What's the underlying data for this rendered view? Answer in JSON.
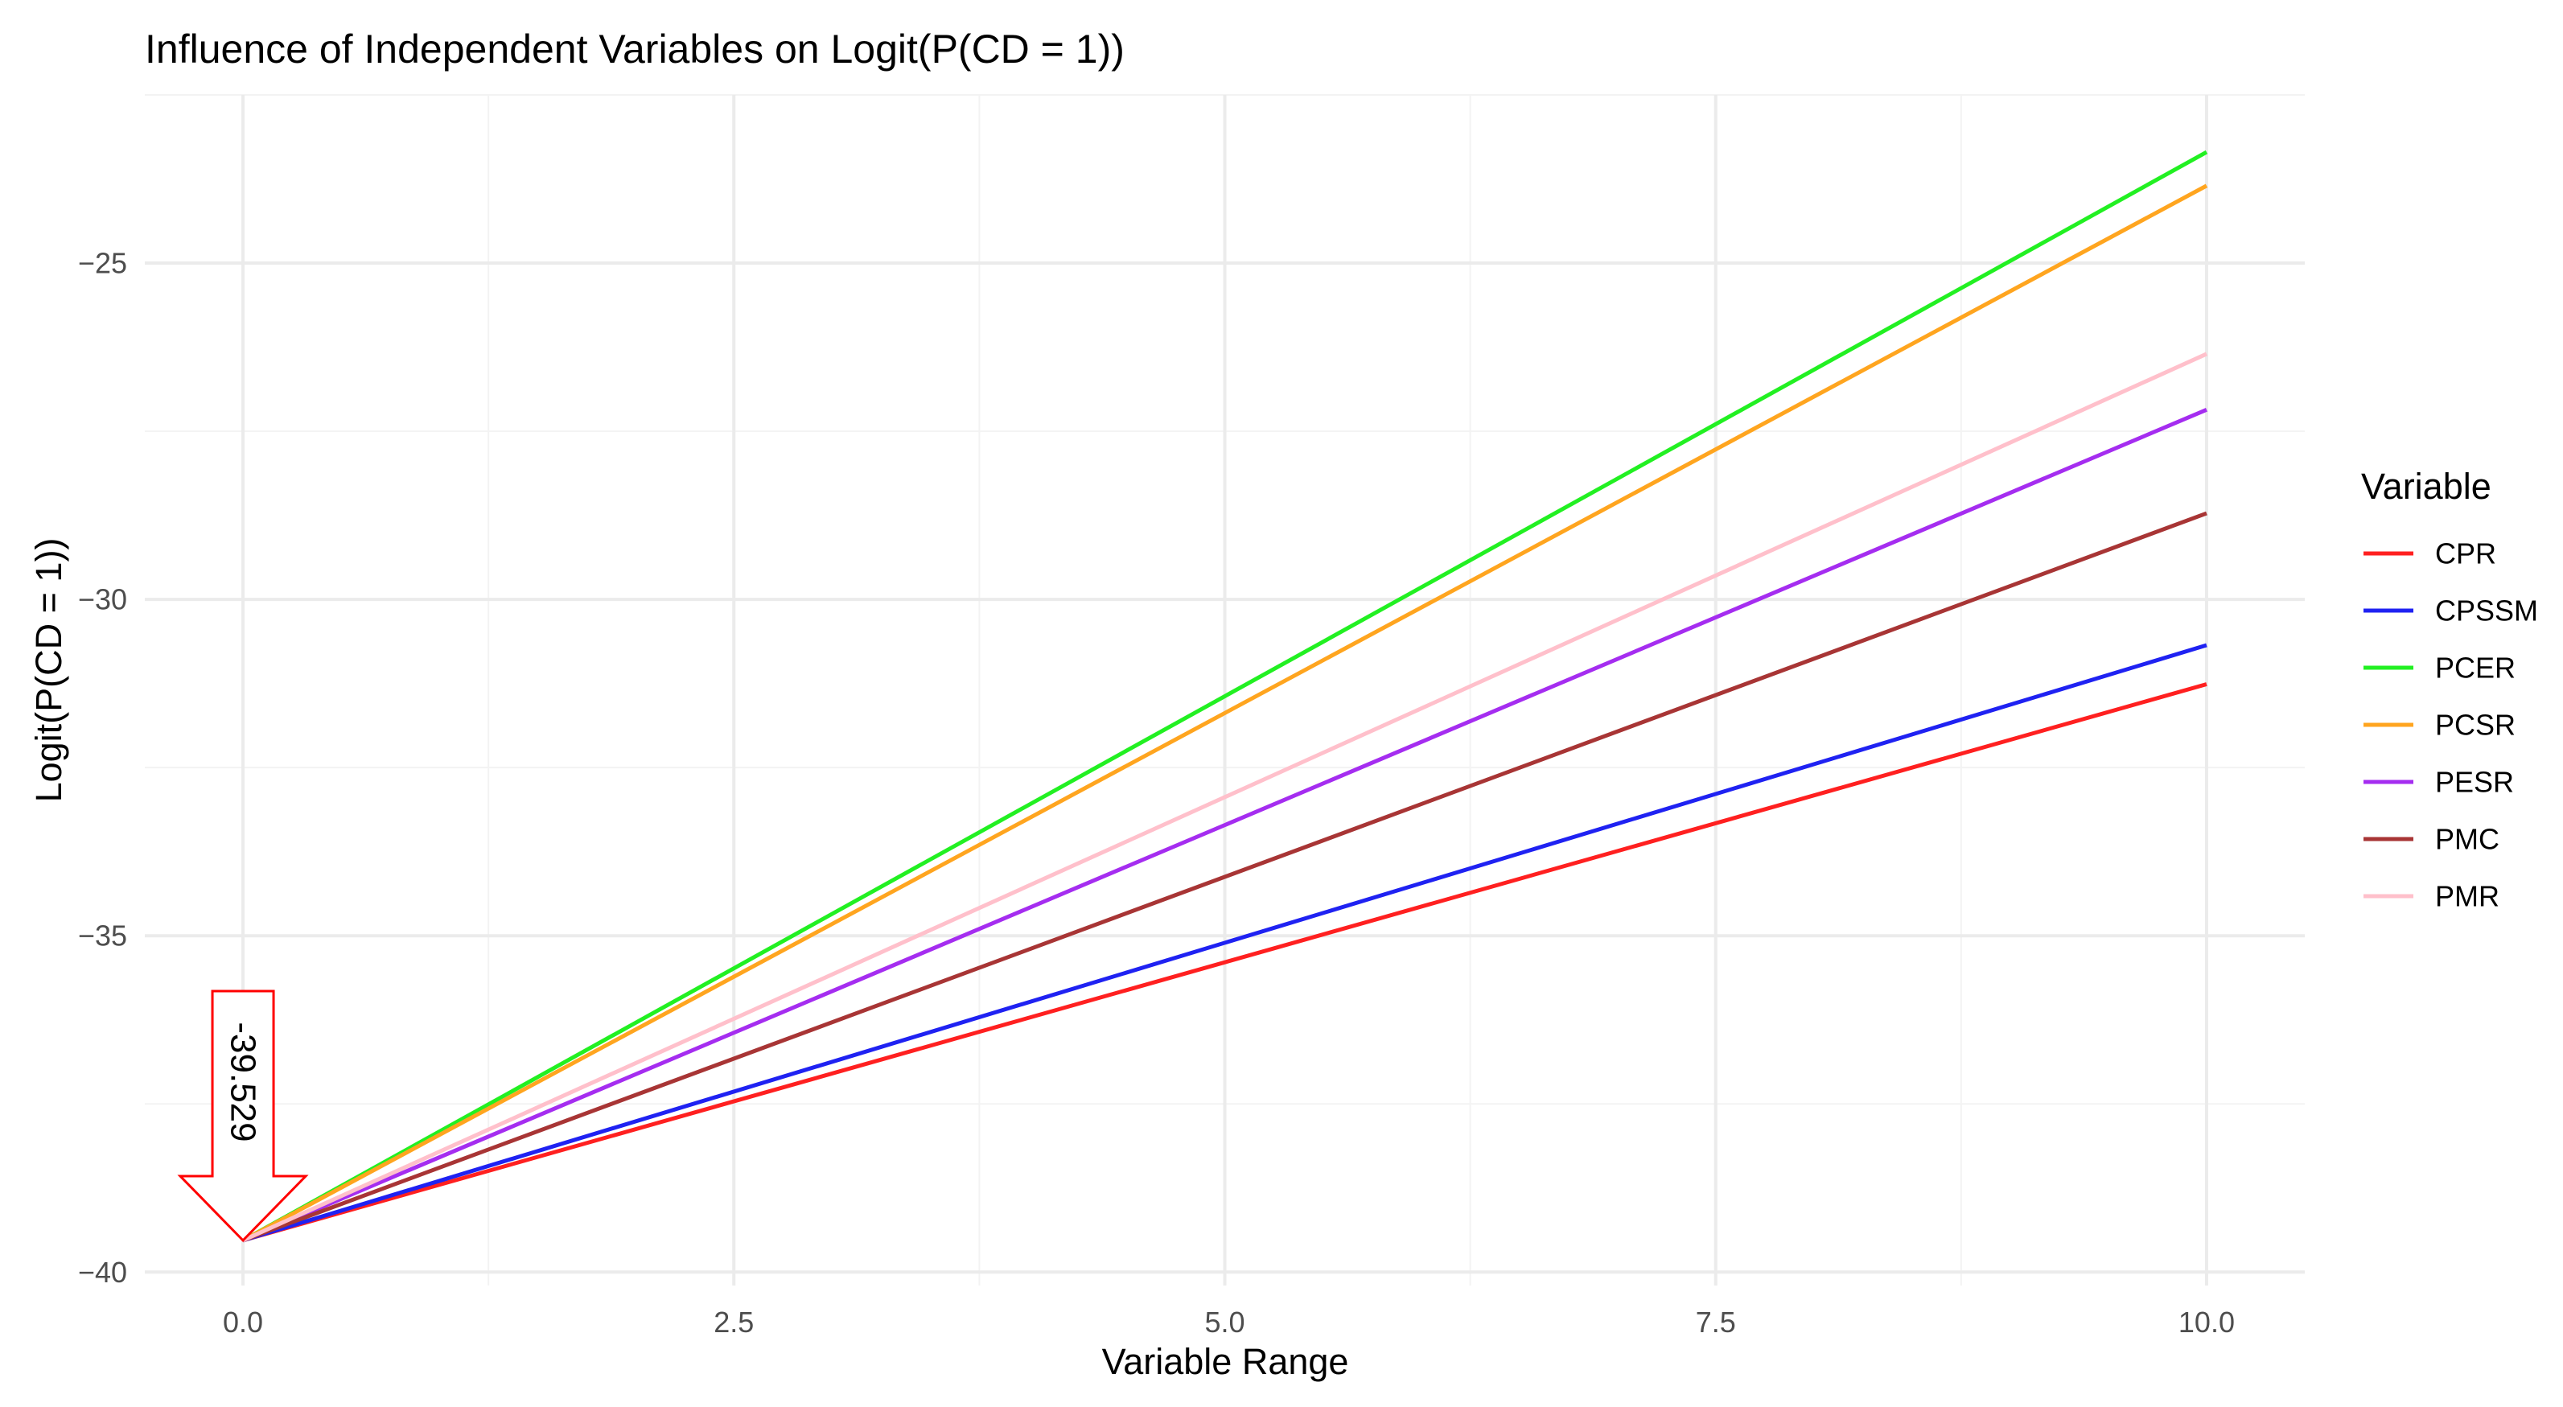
{
  "chart_data": {
    "type": "line",
    "title": "Influence of Independent Variables on Logit(P(CD = 1))",
    "xlabel": "Variable Range",
    "ylabel": "Logit(P(CD = 1))",
    "xlim": [
      -0.5,
      10.5
    ],
    "ylim": [
      -40.2,
      -22.5
    ],
    "x_ticks": [
      0.0,
      2.5,
      5.0,
      7.5,
      10.0
    ],
    "x_tick_labels": [
      "0.0",
      "2.5",
      "5.0",
      "7.5",
      "10.0"
    ],
    "y_ticks": [
      -40,
      -35,
      -30,
      -25
    ],
    "y_tick_labels": [
      "−40",
      "−35",
      "−30",
      "−25"
    ],
    "grid": true,
    "legend": {
      "title": "Variable",
      "position": "right"
    },
    "x": [
      0,
      10
    ],
    "series": [
      {
        "name": "CPR",
        "color": "#FF2020",
        "values": [
          -39.529,
          -31.26
        ]
      },
      {
        "name": "CPSSM",
        "color": "#1F22F2",
        "values": [
          -39.529,
          -30.68
        ]
      },
      {
        "name": "PCER",
        "color": "#22F022",
        "values": [
          -39.529,
          -23.35
        ]
      },
      {
        "name": "PCSR",
        "color": "#FFA51F",
        "values": [
          -39.529,
          -23.85
        ]
      },
      {
        "name": "PESR",
        "color": "#A52DF0",
        "values": [
          -39.529,
          -27.18
        ]
      },
      {
        "name": "PMC",
        "color": "#A83535",
        "values": [
          -39.529,
          -28.72
        ]
      },
      {
        "name": "PMR",
        "color": "#FFC0CB",
        "values": [
          -39.529,
          -26.35
        ]
      }
    ],
    "annotation": {
      "text": "-39.529",
      "x": 0,
      "y": -39.529,
      "color": "#FF0000"
    }
  }
}
